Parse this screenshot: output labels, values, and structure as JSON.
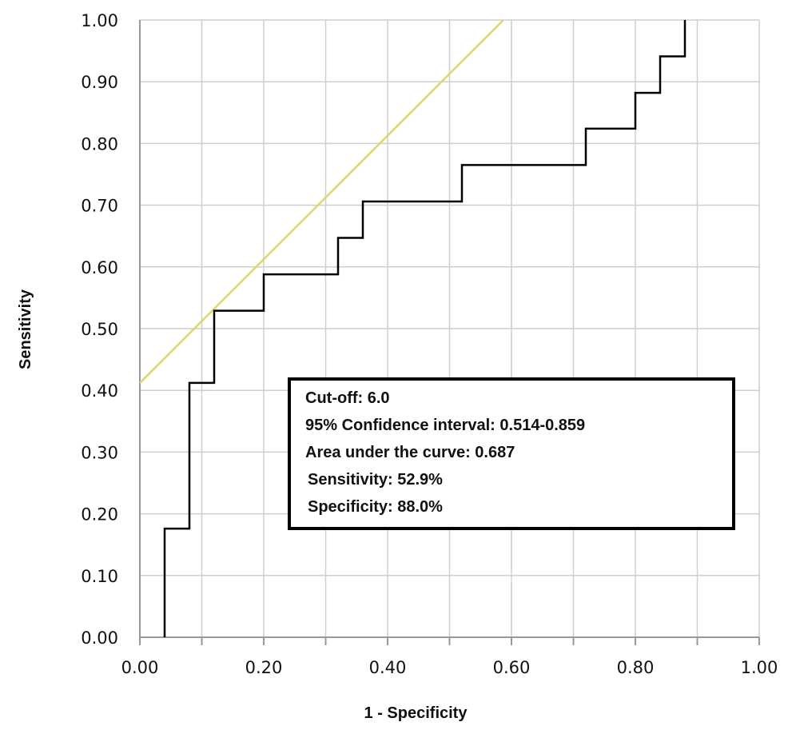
{
  "chart_data": {
    "type": "line",
    "xlabel": "1 - Specificity",
    "ylabel": "Sensitivity",
    "xlim": [
      0,
      1
    ],
    "ylim": [
      0,
      1
    ],
    "grid": true,
    "x_ticks": [
      "0.00",
      "0.20",
      "0.40",
      "0.60",
      "0.80",
      "1.00"
    ],
    "y_ticks": [
      "0.00",
      "0.10",
      "0.20",
      "0.30",
      "0.40",
      "0.50",
      "0.60",
      "0.70",
      "0.80",
      "0.90",
      "1.00"
    ],
    "series": [
      {
        "color": "#000000",
        "x": [
          0.04,
          0.04,
          0.08,
          0.08,
          0.12,
          0.12,
          0.2,
          0.2,
          0.32,
          0.32,
          0.36,
          0.36,
          0.52,
          0.52,
          0.72,
          0.72,
          0.8,
          0.8,
          0.84,
          0.84,
          0.88,
          0.88
        ],
        "y": [
          0.0,
          0.176,
          0.176,
          0.412,
          0.412,
          0.529,
          0.529,
          0.588,
          0.588,
          0.647,
          0.647,
          0.706,
          0.706,
          0.765,
          0.765,
          0.824,
          0.824,
          0.882,
          0.882,
          0.941,
          0.941,
          1.0
        ]
      }
    ],
    "reference_line": {
      "color": "#e0d56a",
      "x": [
        0.0,
        0.587
      ],
      "y": [
        0.412,
        1.0
      ]
    },
    "annotation": {
      "lines": [
        "Cut-off: 6.0",
        "95% Confidence interval: 0.514-0.859",
        "Area under the curve: 0.687",
        "Sensitivity: 52.9%",
        "Specificity: 88.0%"
      ]
    }
  }
}
